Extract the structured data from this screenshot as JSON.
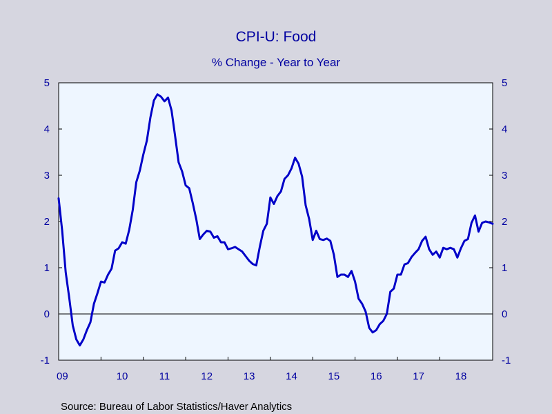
{
  "chart_data": {
    "type": "line",
    "title": "CPI-U: Food",
    "subtitle": "% Change - Year to Year",
    "source": "Source:  Bureau of Labor Statistics/Haver Analytics",
    "x_start": "2009-01",
    "x_end": "2019-04",
    "ylim": [
      -1,
      5
    ],
    "y_ticks": [
      5,
      4,
      3,
      2,
      1,
      0,
      -1
    ],
    "x_tick_labels": [
      "09",
      "10",
      "11",
      "12",
      "13",
      "14",
      "15",
      "16",
      "17",
      "18"
    ],
    "grid": false,
    "zero_line": true,
    "colors": {
      "line": "#0000c8",
      "text": "#0000a0",
      "plot_bg": "#eef6ff",
      "page_bg": "#d6d6e0"
    },
    "series": [
      {
        "x": [
          "2009-01",
          "2009-02",
          "2009-03",
          "2009-04",
          "2009-05",
          "2009-06",
          "2009-07",
          "2009-08",
          "2009-09",
          "2009-10",
          "2009-11",
          "2009-12",
          "2010-01",
          "2010-02",
          "2010-03",
          "2010-04",
          "2010-05",
          "2010-06",
          "2010-07",
          "2010-08",
          "2010-09",
          "2010-10",
          "2010-11",
          "2010-12",
          "2011-01",
          "2011-02",
          "2011-03",
          "2011-04",
          "2011-05",
          "2011-06",
          "2011-07",
          "2011-08",
          "2011-09",
          "2011-10",
          "2011-11",
          "2011-12",
          "2012-01",
          "2012-02",
          "2012-03",
          "2012-04",
          "2012-05",
          "2012-06",
          "2012-07",
          "2012-08",
          "2012-09",
          "2012-10",
          "2012-11",
          "2012-12",
          "2013-01",
          "2013-02",
          "2013-03",
          "2013-04",
          "2013-05",
          "2013-06",
          "2013-07",
          "2013-08",
          "2013-09",
          "2013-10",
          "2013-11",
          "2013-12",
          "2014-01",
          "2014-02",
          "2014-03",
          "2014-04",
          "2014-05",
          "2014-06",
          "2014-07",
          "2014-08",
          "2014-09",
          "2014-10",
          "2014-11",
          "2014-12",
          "2015-01",
          "2015-02",
          "2015-03",
          "2015-04",
          "2015-05",
          "2015-06",
          "2015-07",
          "2015-08",
          "2015-09",
          "2015-10",
          "2015-11",
          "2015-12",
          "2016-01",
          "2016-02",
          "2016-03",
          "2016-04",
          "2016-05",
          "2016-06",
          "2016-07",
          "2016-08",
          "2016-09",
          "2016-10",
          "2016-11",
          "2016-12",
          "2017-01",
          "2017-02",
          "2017-03",
          "2017-04",
          "2017-05",
          "2017-06",
          "2017-07",
          "2017-08",
          "2017-09",
          "2017-10",
          "2017-11",
          "2017-12",
          "2018-01",
          "2018-02",
          "2018-03",
          "2018-04",
          "2018-05",
          "2018-06",
          "2018-07",
          "2018-08",
          "2018-09",
          "2018-10",
          "2018-11",
          "2018-12",
          "2019-01",
          "2019-02",
          "2019-03",
          "2019-04"
        ],
        "values": [
          2.5,
          1.8,
          0.9,
          0.35,
          -0.25,
          -0.55,
          -0.68,
          -0.55,
          -0.35,
          -0.18,
          0.22,
          0.45,
          0.7,
          0.68,
          0.85,
          0.98,
          1.37,
          1.42,
          1.55,
          1.52,
          1.82,
          2.25,
          2.85,
          3.1,
          3.45,
          3.75,
          4.25,
          4.62,
          4.75,
          4.7,
          4.6,
          4.68,
          4.4,
          3.85,
          3.28,
          3.08,
          2.78,
          2.72,
          2.4,
          2.05,
          1.62,
          1.72,
          1.8,
          1.78,
          1.65,
          1.68,
          1.55,
          1.55,
          1.4,
          1.42,
          1.45,
          1.4,
          1.35,
          1.25,
          1.15,
          1.08,
          1.05,
          1.45,
          1.8,
          1.95,
          2.52,
          2.38,
          2.55,
          2.65,
          2.92,
          3.0,
          3.15,
          3.38,
          3.25,
          2.97,
          2.35,
          2.05,
          1.6,
          1.8,
          1.62,
          1.6,
          1.63,
          1.58,
          1.28,
          0.8,
          0.85,
          0.85,
          0.8,
          0.93,
          0.7,
          0.33,
          0.22,
          0.05,
          -0.3,
          -0.4,
          -0.35,
          -0.22,
          -0.15,
          0.0,
          0.48,
          0.55,
          0.85,
          0.85,
          1.07,
          1.1,
          1.23,
          1.32,
          1.4,
          1.58,
          1.67,
          1.4,
          1.28,
          1.35,
          1.22,
          1.43,
          1.4,
          1.43,
          1.4,
          1.22,
          1.42,
          1.58,
          1.62,
          1.97,
          2.13,
          1.78,
          1.97,
          2.0,
          1.98,
          1.95
        ]
      }
    ]
  }
}
